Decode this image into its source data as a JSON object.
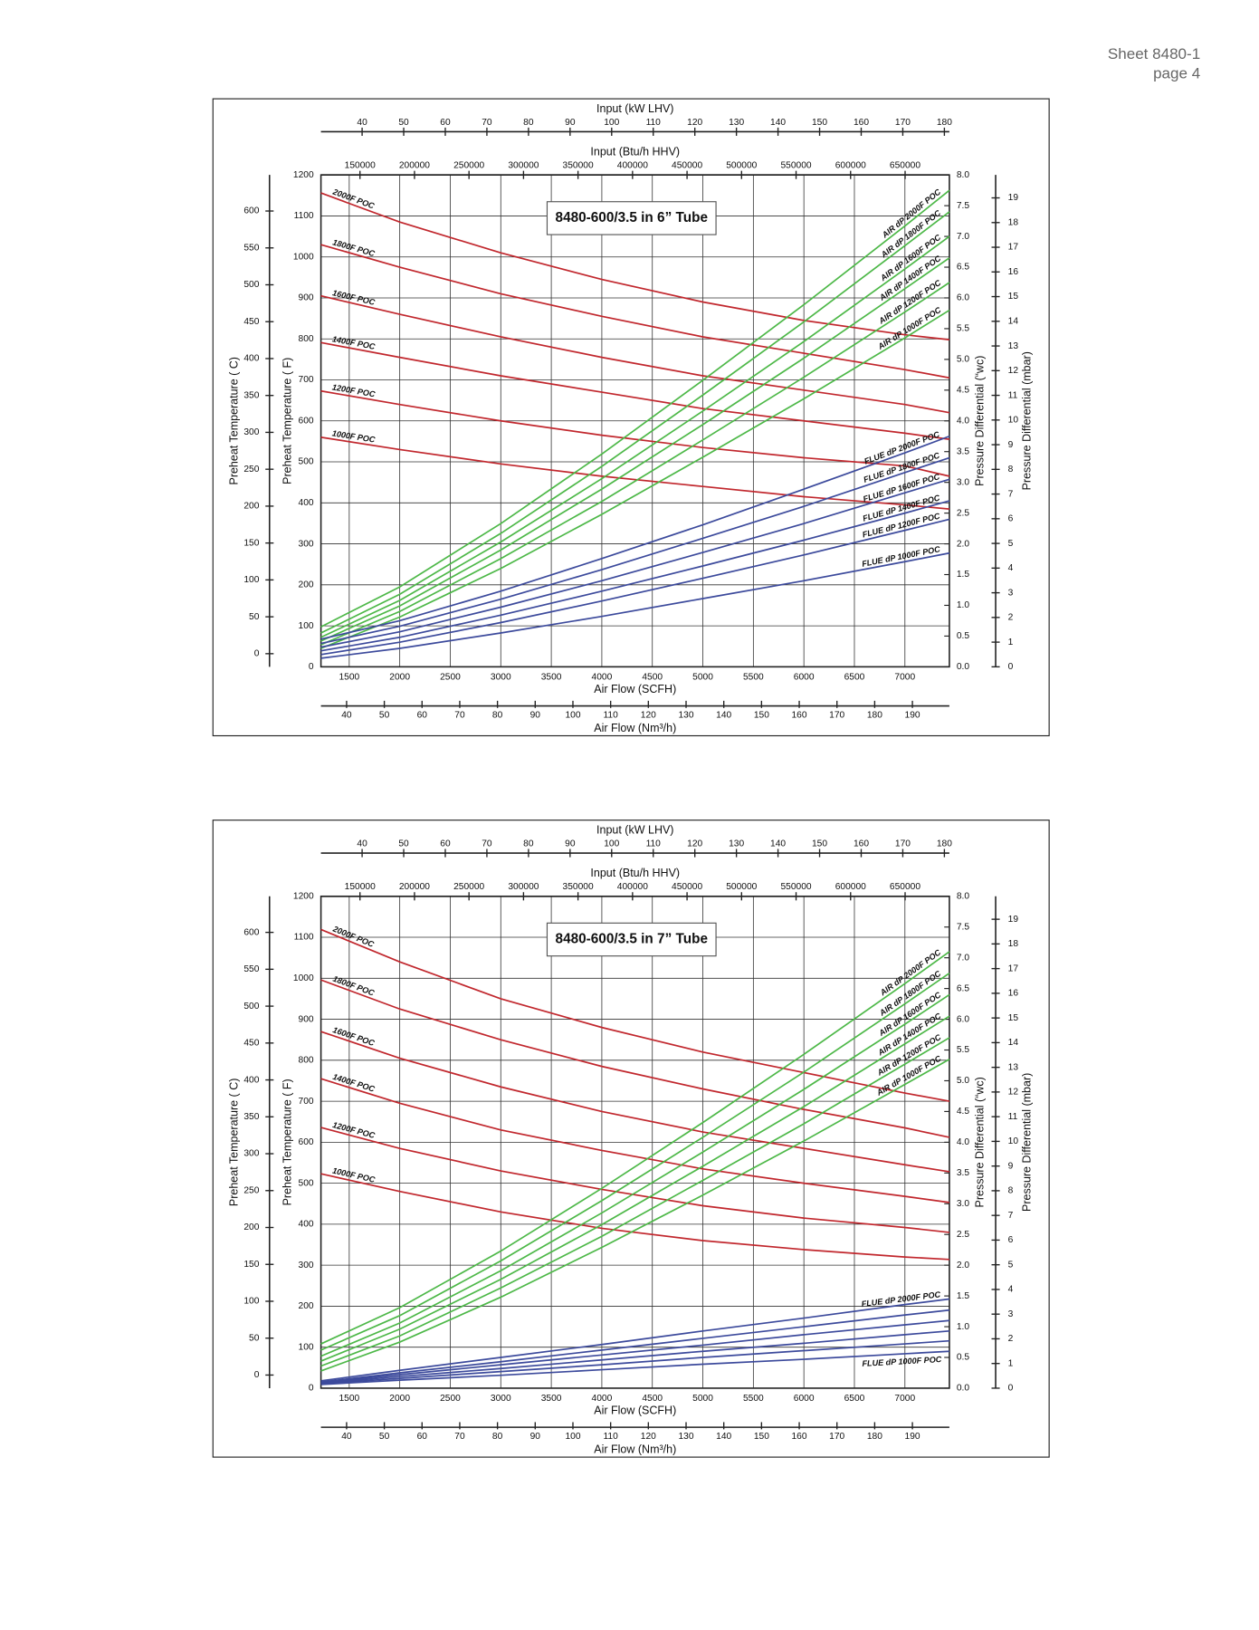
{
  "header": {
    "sheet": "Sheet 8480-1",
    "page": "page 4"
  },
  "chart_data": [
    {
      "type": "line",
      "title": "8480-600/3.5 in 6” Tube",
      "x": [
        1220,
        2000,
        3000,
        4000,
        5000,
        6000,
        7000,
        7440
      ],
      "xlabel": "Air Flow (SCFH)",
      "xlim": [
        1220,
        7440
      ],
      "xticks": [
        1500,
        2000,
        2500,
        3000,
        3500,
        4000,
        4500,
        5000,
        5500,
        6000,
        6500,
        7000
      ],
      "ylabel": "Preheat Temperature ( F)",
      "ylim": [
        0,
        1200
      ],
      "yticks": [
        0,
        100,
        200,
        300,
        400,
        500,
        600,
        700,
        800,
        900,
        1000,
        1100,
        1200
      ],
      "y2label": "Pressure Differential (“wc)",
      "y2lim": [
        0,
        8
      ],
      "y2ticks": [
        {
          "value": 0,
          "label": "0.0"
        },
        0.5,
        {
          "value": 1,
          "label": "1.0"
        },
        1.5,
        {
          "value": 2,
          "label": "2.0"
        },
        2.5,
        {
          "value": 3,
          "label": "3.0"
        },
        3.5,
        {
          "value": 4,
          "label": "4.0"
        },
        4.5,
        {
          "value": 5,
          "label": "5.0"
        },
        5.5,
        {
          "value": 6,
          "label": "6.0"
        },
        6.5,
        {
          "value": 7,
          "label": "7.0"
        },
        7.5,
        {
          "value": 8,
          "label": "8.0"
        }
      ],
      "extra_axes": [
        {
          "side": "top",
          "label": "Input (kW LHV)",
          "lim": [
            30.1,
            181.2
          ],
          "ticks": [
            40,
            50,
            60,
            70,
            80,
            90,
            100,
            110,
            120,
            130,
            140,
            150,
            160,
            170,
            180
          ]
        },
        {
          "side": "top",
          "label": "Input (Btu/h HHV)",
          "lim": [
            114200,
            690600
          ],
          "ticks": [
            150000,
            200000,
            250000,
            300000,
            350000,
            400000,
            450000,
            500000,
            550000,
            600000,
            650000
          ]
        },
        {
          "side": "bottom",
          "label": "Air Flow (Nm³/h)",
          "lim": [
            33.2,
            199.8
          ],
          "ticks": [
            40,
            50,
            60,
            70,
            80,
            90,
            100,
            110,
            120,
            130,
            140,
            150,
            160,
            170,
            180,
            190
          ]
        },
        {
          "side": "left",
          "label": "Preheat Temperature ( C)",
          "lim": [
            -17.8,
            648.9
          ],
          "ticks": [
            0,
            50,
            100,
            150,
            200,
            250,
            300,
            350,
            400,
            450,
            500,
            550,
            600
          ]
        },
        {
          "side": "right",
          "label": "Pressure Differential (mbar)",
          "lim": [
            0,
            19.93
          ],
          "ticks": [
            0,
            1,
            2,
            3,
            4,
            5,
            6,
            7,
            8,
            9,
            10,
            11,
            12,
            13,
            14,
            15,
            16,
            17,
            18,
            19
          ]
        }
      ],
      "grid": true,
      "series": [
        {
          "name": "2000F POC",
          "color": "#c1272d",
          "axis": "y",
          "values": [
            1156,
            1085,
            1010,
            945,
            890,
            845,
            810,
            798
          ]
        },
        {
          "name": "1800F POC",
          "color": "#c1272d",
          "axis": "y",
          "values": [
            1030,
            975,
            910,
            855,
            805,
            765,
            725,
            705
          ]
        },
        {
          "name": "1600F POC",
          "color": "#c1272d",
          "axis": "y",
          "values": [
            905,
            860,
            805,
            755,
            710,
            675,
            640,
            620
          ]
        },
        {
          "name": "1400F POC",
          "color": "#c1272d",
          "axis": "y",
          "values": [
            791,
            755,
            710,
            670,
            630,
            600,
            570,
            555
          ]
        },
        {
          "name": "1200F POC",
          "color": "#c1272d",
          "axis": "y",
          "values": [
            673,
            640,
            600,
            565,
            535,
            510,
            490,
            465
          ]
        },
        {
          "name": "1000F POC",
          "color": "#c1272d",
          "axis": "y",
          "values": [
            560,
            530,
            495,
            465,
            440,
            415,
            395,
            385
          ]
        },
        {
          "name": "AIR dP 2000F POC",
          "color": "#4db848",
          "axis": "y2",
          "values": [
            0.65,
            1.3,
            2.33,
            3.46,
            4.66,
            5.89,
            7.17,
            7.75
          ]
        },
        {
          "name": "AIR dP 1800F POC",
          "color": "#4db848",
          "axis": "y2",
          "values": [
            0.55,
            1.18,
            2.17,
            3.26,
            4.42,
            5.61,
            6.85,
            7.4
          ]
        },
        {
          "name": "AIR dP 1600F POC",
          "color": "#4db848",
          "axis": "y2",
          "values": [
            0.48,
            1.08,
            2.03,
            3.06,
            4.16,
            5.29,
            6.47,
            7.0
          ]
        },
        {
          "name": "AIR dP 1400F POC",
          "color": "#4db848",
          "axis": "y2",
          "values": [
            0.42,
            0.99,
            1.9,
            2.89,
            3.94,
            5.02,
            6.15,
            6.65
          ]
        },
        {
          "name": "AIR dP 1200F POC",
          "color": "#4db848",
          "axis": "y2",
          "values": [
            0.36,
            0.9,
            1.76,
            2.69,
            3.69,
            4.71,
            5.77,
            6.25
          ]
        },
        {
          "name": "AIR dP 1000F POC",
          "color": "#4db848",
          "axis": "y2",
          "values": [
            0.3,
            0.81,
            1.6,
            2.48,
            3.41,
            4.36,
            5.35,
            5.8
          ]
        },
        {
          "name": "FLUE dP 2000F POC",
          "color": "#3c4a9c",
          "axis": "y2",
          "values": [
            0.45,
            0.75,
            1.23,
            1.76,
            2.31,
            2.89,
            3.48,
            3.75
          ]
        },
        {
          "name": "FLUE dP 1800F POC",
          "color": "#3c4a9c",
          "axis": "y2",
          "values": [
            0.38,
            0.66,
            1.1,
            1.58,
            2.09,
            2.61,
            3.16,
            3.4
          ]
        },
        {
          "name": "FLUE dP 1600F POC",
          "color": "#3c4a9c",
          "axis": "y2",
          "values": [
            0.32,
            0.57,
            0.97,
            1.4,
            1.86,
            2.33,
            2.83,
            3.05
          ]
        },
        {
          "name": "FLUE dP 1400F POC",
          "color": "#3c4a9c",
          "axis": "y2",
          "values": [
            0.26,
            0.48,
            0.84,
            1.23,
            1.64,
            2.06,
            2.5,
            2.7
          ]
        },
        {
          "name": "FLUE dP 1200F POC",
          "color": "#3c4a9c",
          "axis": "y2",
          "values": [
            0.2,
            0.4,
            0.72,
            1.07,
            1.44,
            1.82,
            2.22,
            2.4
          ]
        },
        {
          "name": "FLUE dP 1000F POC",
          "color": "#3c4a9c",
          "axis": "y2",
          "values": [
            0.14,
            0.3,
            0.55,
            0.82,
            1.11,
            1.4,
            1.71,
            1.85
          ]
        }
      ]
    },
    {
      "type": "line",
      "title": "8480-600/3.5 in 7” Tube",
      "x": [
        1220,
        2000,
        3000,
        4000,
        5000,
        6000,
        7000,
        7440
      ],
      "xlabel": "Air Flow (SCFH)",
      "xlim": [
        1220,
        7440
      ],
      "xticks": [
        1500,
        2000,
        2500,
        3000,
        3500,
        4000,
        4500,
        5000,
        5500,
        6000,
        6500,
        7000
      ],
      "ylabel": "Preheat Temperature ( F)",
      "ylim": [
        0,
        1200
      ],
      "yticks": [
        0,
        100,
        200,
        300,
        400,
        500,
        600,
        700,
        800,
        900,
        1000,
        1100,
        1200
      ],
      "y2label": "Pressure Differential (“wc)",
      "y2lim": [
        0,
        8
      ],
      "y2ticks": [
        {
          "value": 0,
          "label": "0.0"
        },
        0.5,
        {
          "value": 1,
          "label": "1.0"
        },
        1.5,
        {
          "value": 2,
          "label": "2.0"
        },
        2.5,
        {
          "value": 3,
          "label": "3.0"
        },
        3.5,
        {
          "value": 4,
          "label": "4.0"
        },
        4.5,
        {
          "value": 5,
          "label": "5.0"
        },
        5.5,
        {
          "value": 6,
          "label": "6.0"
        },
        6.5,
        {
          "value": 7,
          "label": "7.0"
        },
        7.5,
        {
          "value": 8,
          "label": "8.0"
        }
      ],
      "extra_axes": [
        {
          "side": "top",
          "label": "Input (kW LHV)",
          "lim": [
            30.1,
            181.2
          ],
          "ticks": [
            40,
            50,
            60,
            70,
            80,
            90,
            100,
            110,
            120,
            130,
            140,
            150,
            160,
            170,
            180
          ]
        },
        {
          "side": "top",
          "label": "Input (Btu/h HHV)",
          "lim": [
            114200,
            690600
          ],
          "ticks": [
            150000,
            200000,
            250000,
            300000,
            350000,
            400000,
            450000,
            500000,
            550000,
            600000,
            650000
          ]
        },
        {
          "side": "bottom",
          "label": "Air Flow (Nm³/h)",
          "lim": [
            33.2,
            199.8
          ],
          "ticks": [
            40,
            50,
            60,
            70,
            80,
            90,
            100,
            110,
            120,
            130,
            140,
            150,
            160,
            170,
            180,
            190
          ]
        },
        {
          "side": "left",
          "label": "Preheat Temperature ( C)",
          "lim": [
            -17.8,
            648.9
          ],
          "ticks": [
            0,
            50,
            100,
            150,
            200,
            250,
            300,
            350,
            400,
            450,
            500,
            550,
            600
          ]
        },
        {
          "side": "right",
          "label": "Pressure Differential (mbar)",
          "lim": [
            0,
            19.93
          ],
          "ticks": [
            0,
            1,
            2,
            3,
            4,
            5,
            6,
            7,
            8,
            9,
            10,
            11,
            12,
            13,
            14,
            15,
            16,
            17,
            18,
            19
          ]
        }
      ],
      "grid": true,
      "series": [
        {
          "name": "2000F POC",
          "color": "#c1272d",
          "axis": "y",
          "values": [
            1119,
            1040,
            950,
            880,
            820,
            770,
            720,
            700
          ]
        },
        {
          "name": "1800F POC",
          "color": "#c1272d",
          "axis": "y",
          "values": [
            996,
            925,
            850,
            785,
            730,
            680,
            635,
            612
          ]
        },
        {
          "name": "1600F POC",
          "color": "#c1272d",
          "axis": "y",
          "values": [
            870,
            805,
            735,
            675,
            625,
            585,
            545,
            528
          ]
        },
        {
          "name": "1400F POC",
          "color": "#c1272d",
          "axis": "y",
          "values": [
            755,
            695,
            630,
            580,
            535,
            500,
            468,
            453
          ]
        },
        {
          "name": "1200F POC",
          "color": "#c1272d",
          "axis": "y",
          "values": [
            636,
            585,
            530,
            485,
            445,
            415,
            392,
            380
          ]
        },
        {
          "name": "1000F POC",
          "color": "#c1272d",
          "axis": "y",
          "values": [
            523,
            480,
            430,
            390,
            360,
            338,
            320,
            314
          ]
        },
        {
          "name": "AIR dP 2000F POC",
          "color": "#4db848",
          "axis": "y2",
          "values": [
            0.72,
            1.31,
            2.23,
            3.25,
            4.32,
            5.43,
            6.58,
            7.1
          ]
        },
        {
          "name": "AIR dP 1800F POC",
          "color": "#4db848",
          "axis": "y2",
          "values": [
            0.62,
            1.18,
            2.07,
            3.05,
            4.08,
            5.14,
            6.25,
            6.75
          ]
        },
        {
          "name": "AIR dP 1600F POC",
          "color": "#4db848",
          "axis": "y2",
          "values": [
            0.52,
            1.06,
            1.91,
            2.85,
            3.84,
            4.86,
            5.92,
            6.4
          ]
        },
        {
          "name": "AIR dP 1400F POC",
          "color": "#4db848",
          "axis": "y2",
          "values": [
            0.44,
            0.96,
            1.77,
            2.66,
            3.61,
            4.58,
            5.6,
            6.05
          ]
        },
        {
          "name": "AIR dP 1200F POC",
          "color": "#4db848",
          "axis": "y2",
          "values": [
            0.36,
            0.85,
            1.63,
            2.47,
            3.38,
            4.3,
            5.27,
            5.7
          ]
        },
        {
          "name": "AIR dP 1000F POC",
          "color": "#4db848",
          "axis": "y2",
          "values": [
            0.28,
            0.75,
            1.48,
            2.29,
            3.14,
            4.02,
            4.94,
            5.35
          ]
        },
        {
          "name": "FLUE dP 2000F POC",
          "color": "#3c4a9c",
          "axis": "y2",
          "values": [
            0.12,
            0.29,
            0.5,
            0.71,
            0.93,
            1.14,
            1.36,
            1.45
          ]
        },
        {
          "color": "#3c4a9c",
          "axis": "y2",
          "values": [
            0.1,
            0.25,
            0.43,
            0.62,
            0.81,
            1.0,
            1.19,
            1.27
          ]
        },
        {
          "color": "#3c4a9c",
          "axis": "y2",
          "values": [
            0.09,
            0.22,
            0.38,
            0.54,
            0.7,
            0.87,
            1.03,
            1.1
          ]
        },
        {
          "color": "#3c4a9c",
          "axis": "y2",
          "values": [
            0.08,
            0.19,
            0.32,
            0.46,
            0.6,
            0.73,
            0.87,
            0.93
          ]
        },
        {
          "color": "#3c4a9c",
          "axis": "y2",
          "values": [
            0.07,
            0.16,
            0.27,
            0.38,
            0.5,
            0.61,
            0.72,
            0.77
          ]
        },
        {
          "name": "FLUE dP 1000F POC",
          "color": "#3c4a9c",
          "axis": "y2",
          "values": [
            0.06,
            0.13,
            0.21,
            0.3,
            0.39,
            0.47,
            0.56,
            0.6
          ]
        }
      ]
    }
  ]
}
